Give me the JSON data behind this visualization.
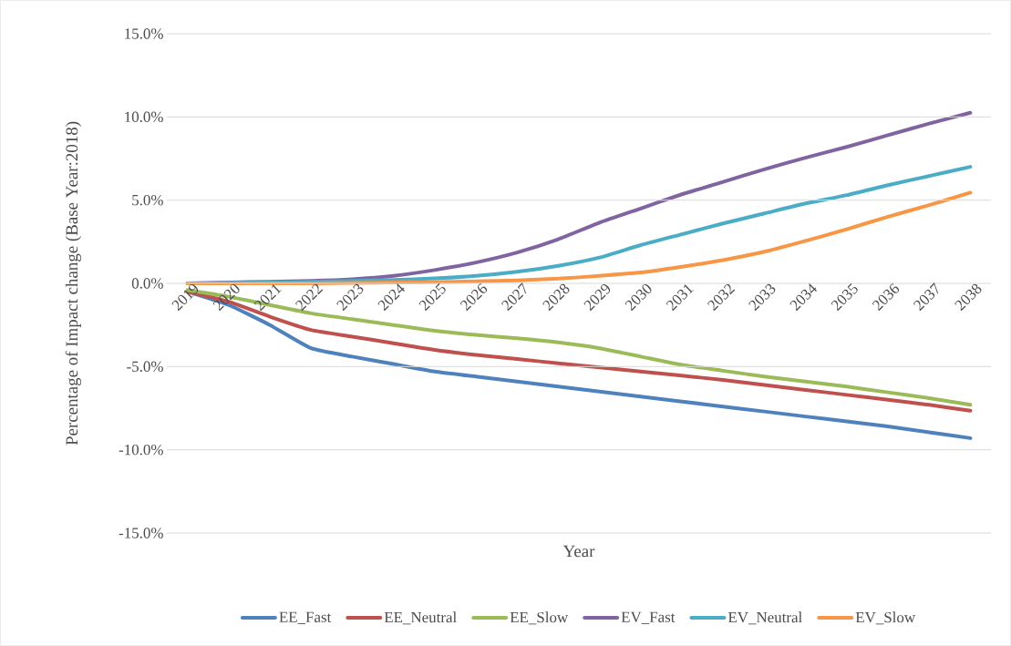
{
  "chart_data": {
    "type": "line",
    "xlabel": "Year",
    "ylabel": "Percentage of Impact change (Base Year:2018)",
    "categories": [
      "2019",
      "2020",
      "2021",
      "2022",
      "2023",
      "2024",
      "2025",
      "2026",
      "2027",
      "2028",
      "2029",
      "2030",
      "2031",
      "2032",
      "2033",
      "2034",
      "2035",
      "2036",
      "2037",
      "2038"
    ],
    "ylim": [
      -15,
      15
    ],
    "yticks": [
      {
        "value": -15,
        "label": "-15.0%"
      },
      {
        "value": -10,
        "label": "-10.0%"
      },
      {
        "value": -5,
        "label": "-5.0%"
      },
      {
        "value": 0,
        "label": "0.0%"
      },
      {
        "value": 5,
        "label": "5.0%"
      },
      {
        "value": 10,
        "label": "10.0%"
      },
      {
        "value": 15,
        "label": "15.0%"
      }
    ],
    "grid": "y",
    "legend": "bottom",
    "marker": "none",
    "line_style": "solid",
    "series": [
      {
        "name": "EE_Fast",
        "color": "#4f81bd",
        "values": [
          -0.5,
          -1.3,
          -2.5,
          -3.9,
          -4.4,
          -4.85,
          -5.3,
          -5.6,
          -5.9,
          -6.2,
          -6.5,
          -6.8,
          -7.1,
          -7.4,
          -7.7,
          -8.0,
          -8.3,
          -8.6,
          -8.95,
          -9.3
        ]
      },
      {
        "name": "EE_Neutral",
        "color": "#c0504d",
        "values": [
          -0.5,
          -1.1,
          -2.0,
          -2.8,
          -3.2,
          -3.6,
          -4.0,
          -4.3,
          -4.55,
          -4.8,
          -5.05,
          -5.3,
          -5.55,
          -5.8,
          -6.1,
          -6.4,
          -6.7,
          -7.0,
          -7.3,
          -7.65
        ]
      },
      {
        "name": "EE_Slow",
        "color": "#9bbb59",
        "values": [
          -0.4,
          -0.8,
          -1.3,
          -1.8,
          -2.15,
          -2.5,
          -2.85,
          -3.1,
          -3.3,
          -3.55,
          -3.9,
          -4.4,
          -4.9,
          -5.25,
          -5.6,
          -5.9,
          -6.2,
          -6.55,
          -6.9,
          -7.3
        ]
      },
      {
        "name": "EV_Fast",
        "color": "#8064a2",
        "values": [
          0,
          0.05,
          0.1,
          0.15,
          0.25,
          0.45,
          0.8,
          1.25,
          1.85,
          2.65,
          3.65,
          4.5,
          5.35,
          6.1,
          6.85,
          7.55,
          8.2,
          8.9,
          9.6,
          10.25
        ]
      },
      {
        "name": "EV_Neutral",
        "color": "#4bacc6",
        "values": [
          0,
          0.02,
          0.05,
          0.1,
          0.15,
          0.2,
          0.3,
          0.45,
          0.7,
          1.05,
          1.55,
          2.3,
          2.95,
          3.6,
          4.2,
          4.8,
          5.3,
          5.9,
          6.45,
          7.0
        ]
      },
      {
        "name": "EV_Slow",
        "color": "#f79646",
        "values": [
          0,
          0,
          0,
          0,
          0.02,
          0.05,
          0.08,
          0.12,
          0.18,
          0.28,
          0.45,
          0.65,
          1.0,
          1.4,
          1.9,
          2.55,
          3.25,
          4.0,
          4.7,
          5.45
        ]
      }
    ]
  }
}
